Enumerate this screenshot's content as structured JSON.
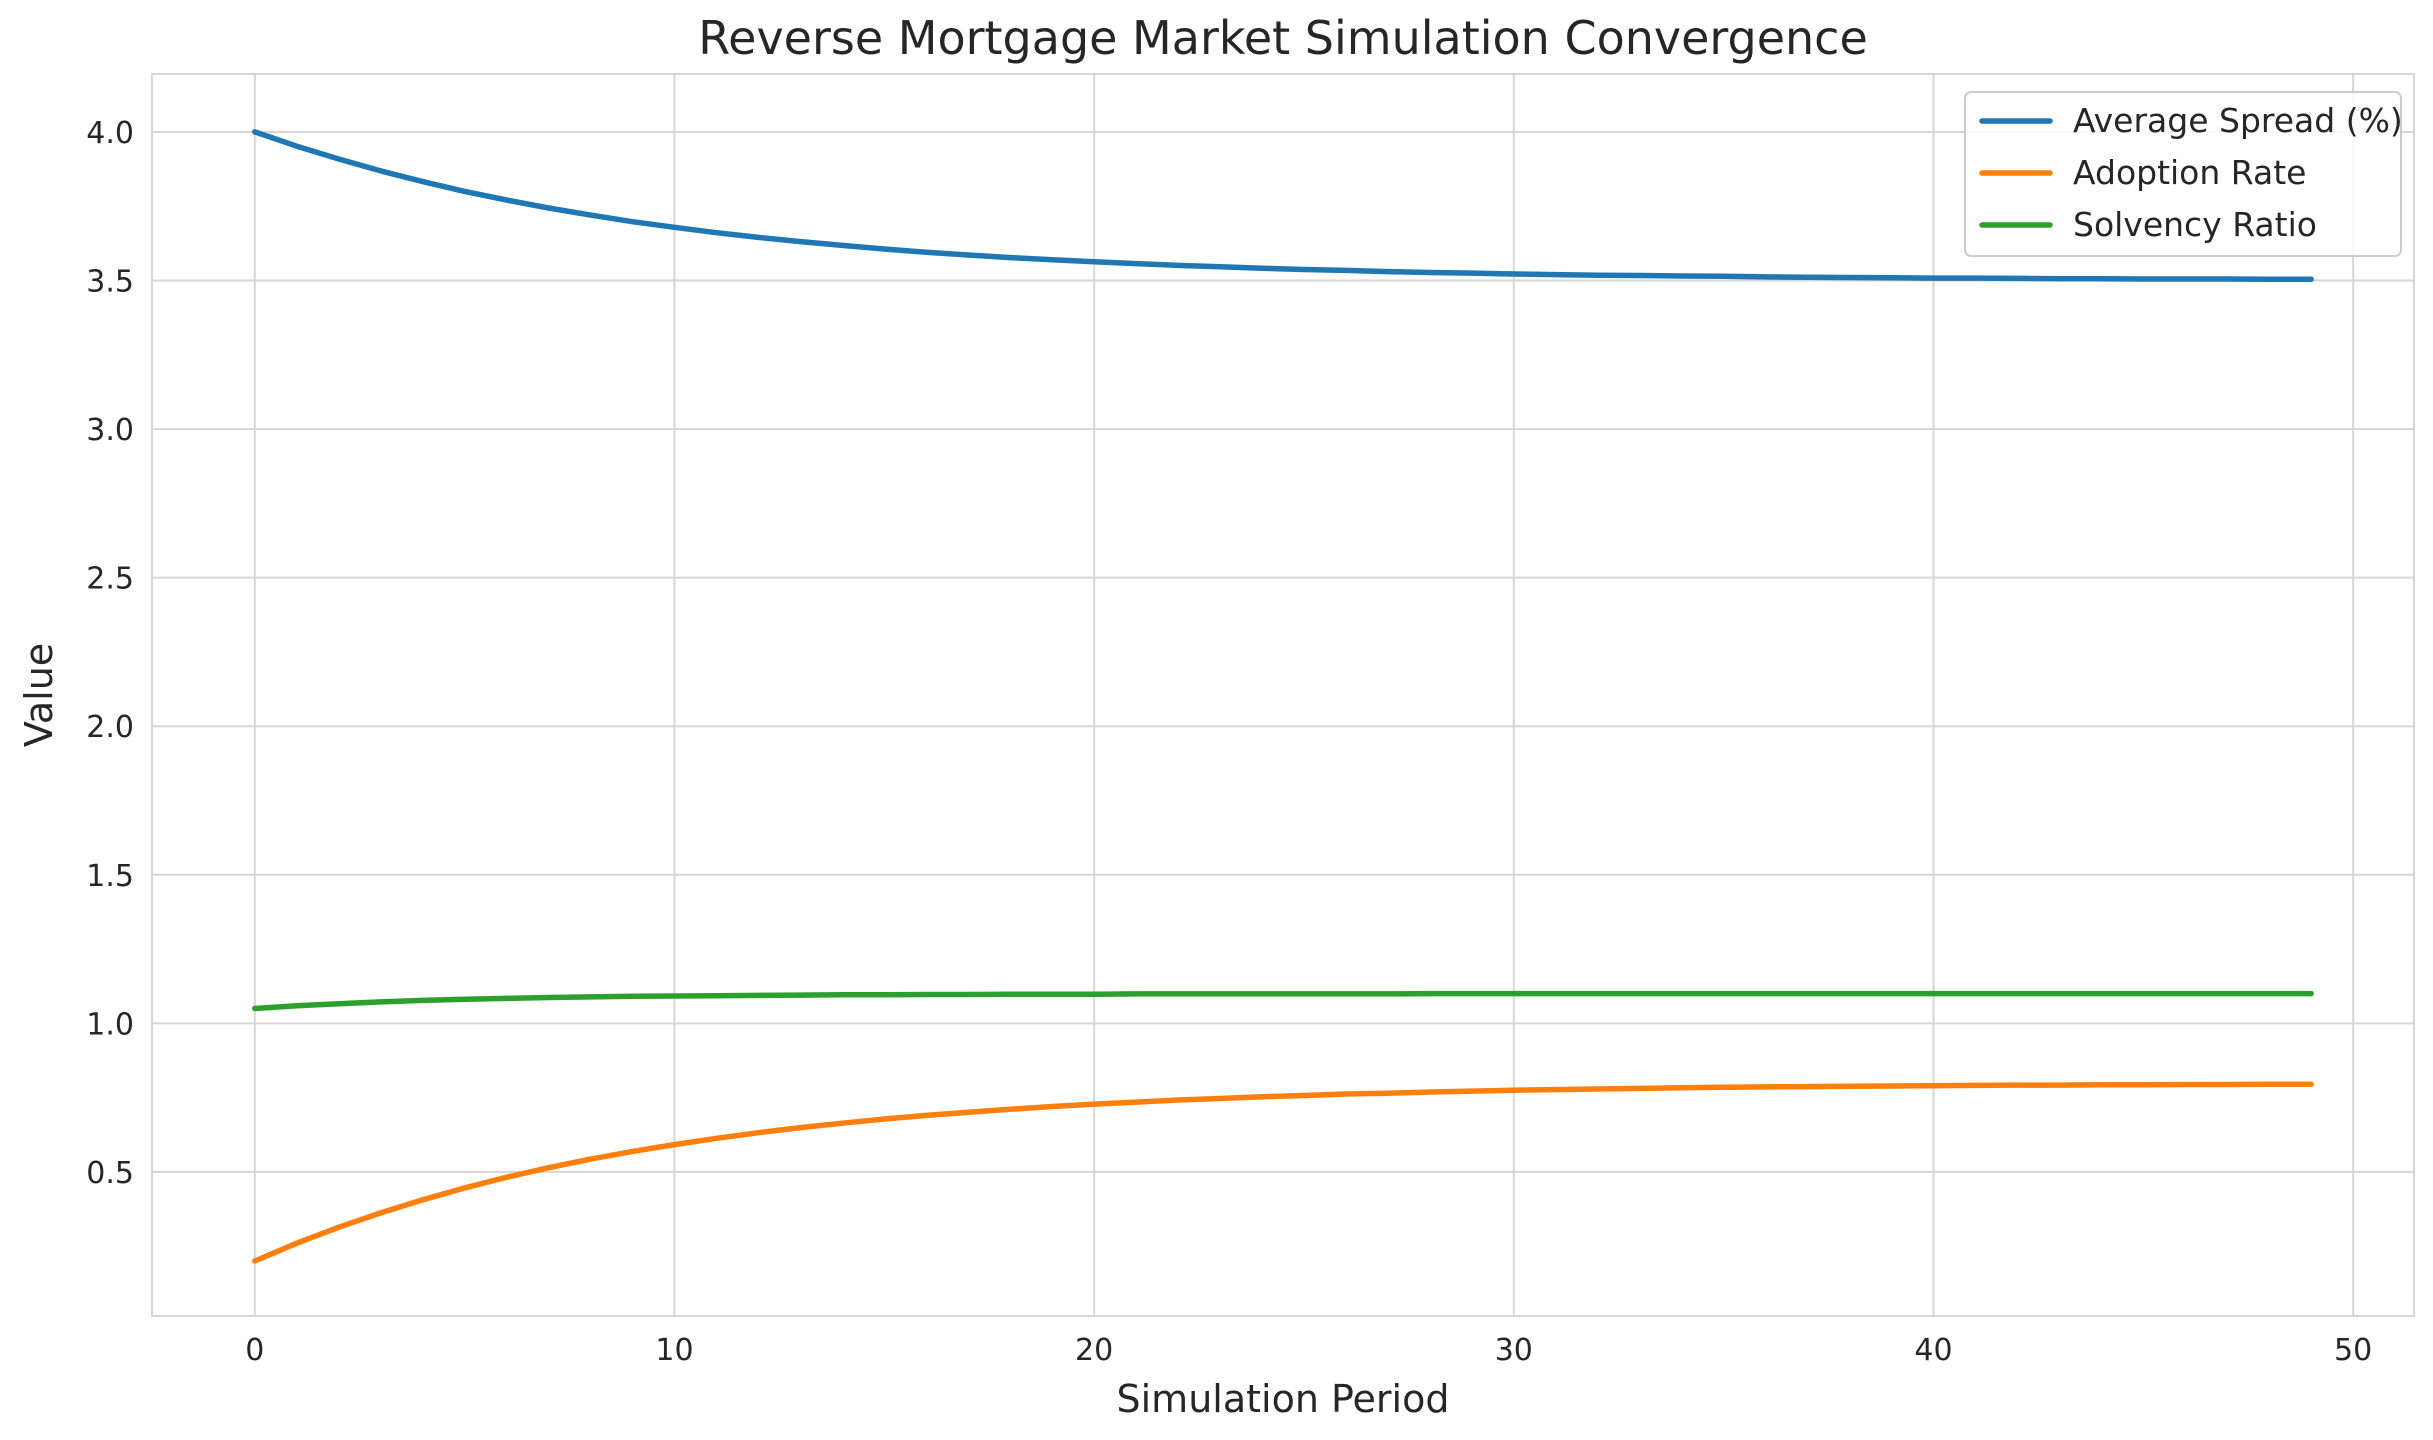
{
  "chart_data": {
    "type": "line",
    "title": "Reverse Mortgage Market Simulation Convergence",
    "xlabel": "Simulation Period",
    "ylabel": "Value",
    "xlim": [
      -2.45,
      51.45
    ],
    "ylim": [
      0.015,
      4.195
    ],
    "x_ticks": [
      0,
      10,
      20,
      30,
      40,
      50
    ],
    "y_ticks": [
      0.5,
      1.0,
      1.5,
      2.0,
      2.5,
      3.0,
      3.5,
      4.0
    ],
    "x_tick_labels": [
      "0",
      "10",
      "20",
      "30",
      "40",
      "50"
    ],
    "y_tick_labels": [
      "0.5",
      "1.0",
      "1.5",
      "2.0",
      "2.5",
      "3.0",
      "3.5",
      "4.0"
    ],
    "grid": true,
    "legend_position": "top-right",
    "x": [
      0,
      1,
      2,
      3,
      4,
      5,
      6,
      7,
      8,
      9,
      10,
      11,
      12,
      13,
      14,
      15,
      16,
      17,
      18,
      19,
      20,
      21,
      22,
      23,
      24,
      25,
      26,
      27,
      28,
      29,
      30,
      31,
      32,
      33,
      34,
      35,
      36,
      37,
      38,
      39,
      40,
      41,
      42,
      43,
      44,
      45,
      46,
      47,
      48,
      49
    ],
    "series": [
      {
        "name": "Average Spread (%)",
        "color": "#1f77b4",
        "values": [
          4.0,
          3.952,
          3.909,
          3.869,
          3.833,
          3.8,
          3.771,
          3.744,
          3.72,
          3.698,
          3.679,
          3.661,
          3.645,
          3.631,
          3.618,
          3.606,
          3.595,
          3.586,
          3.577,
          3.57,
          3.563,
          3.557,
          3.551,
          3.546,
          3.541,
          3.537,
          3.534,
          3.53,
          3.527,
          3.525,
          3.522,
          3.52,
          3.518,
          3.517,
          3.515,
          3.514,
          3.512,
          3.511,
          3.51,
          3.509,
          3.508,
          3.508,
          3.507,
          3.506,
          3.506,
          3.505,
          3.505,
          3.505,
          3.504,
          3.504
        ]
      },
      {
        "name": "Adoption Rate",
        "color": "#ff7f0e",
        "values": [
          0.2,
          0.26,
          0.314,
          0.362,
          0.406,
          0.446,
          0.482,
          0.514,
          0.543,
          0.569,
          0.592,
          0.613,
          0.632,
          0.649,
          0.664,
          0.678,
          0.69,
          0.701,
          0.711,
          0.72,
          0.728,
          0.735,
          0.742,
          0.747,
          0.753,
          0.757,
          0.762,
          0.765,
          0.769,
          0.772,
          0.775,
          0.777,
          0.779,
          0.781,
          0.783,
          0.785,
          0.786,
          0.787,
          0.788,
          0.789,
          0.79,
          0.791,
          0.792,
          0.792,
          0.793,
          0.793,
          0.794,
          0.794,
          0.795,
          0.795
        ]
      },
      {
        "name": "Solvency Ratio",
        "color": "#2ca02c",
        "values": [
          1.05,
          1.059,
          1.066,
          1.072,
          1.077,
          1.081,
          1.084,
          1.087,
          1.089,
          1.091,
          1.092,
          1.093,
          1.094,
          1.095,
          1.096,
          1.096,
          1.097,
          1.097,
          1.098,
          1.098,
          1.098,
          1.099,
          1.099,
          1.099,
          1.099,
          1.099,
          1.099,
          1.099,
          1.1,
          1.1,
          1.1,
          1.1,
          1.1,
          1.1,
          1.1,
          1.1,
          1.1,
          1.1,
          1.1,
          1.1,
          1.1,
          1.1,
          1.1,
          1.1,
          1.1,
          1.1,
          1.1,
          1.1,
          1.1,
          1.1
        ]
      }
    ]
  }
}
